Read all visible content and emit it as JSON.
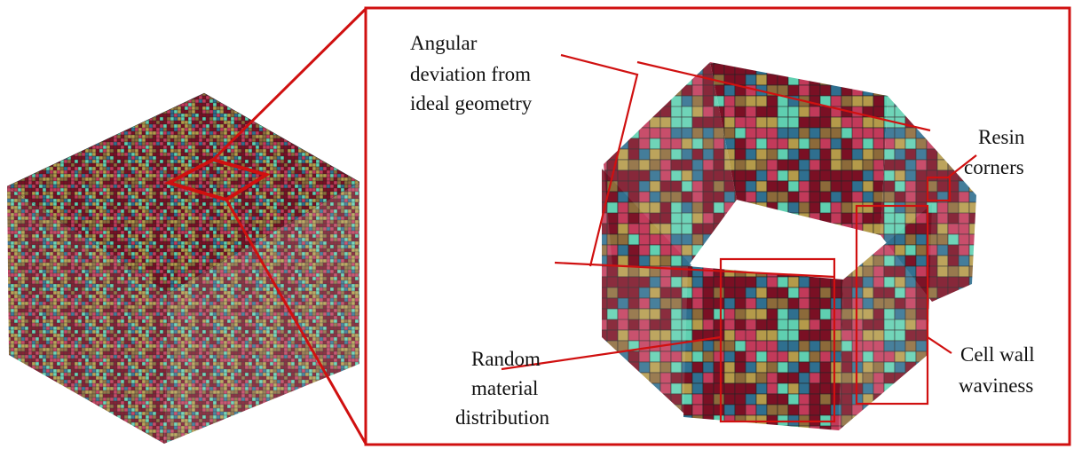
{
  "annotations": [
    {
      "lines": [
        "Angular",
        "deviation from",
        "ideal geometry"
      ]
    },
    {
      "lines": [
        "Resin",
        "corners"
      ]
    },
    {
      "lines": [
        "Random",
        "material",
        "distribution"
      ]
    },
    {
      "lines": [
        "Cell wall",
        "waviness"
      ]
    }
  ]
}
